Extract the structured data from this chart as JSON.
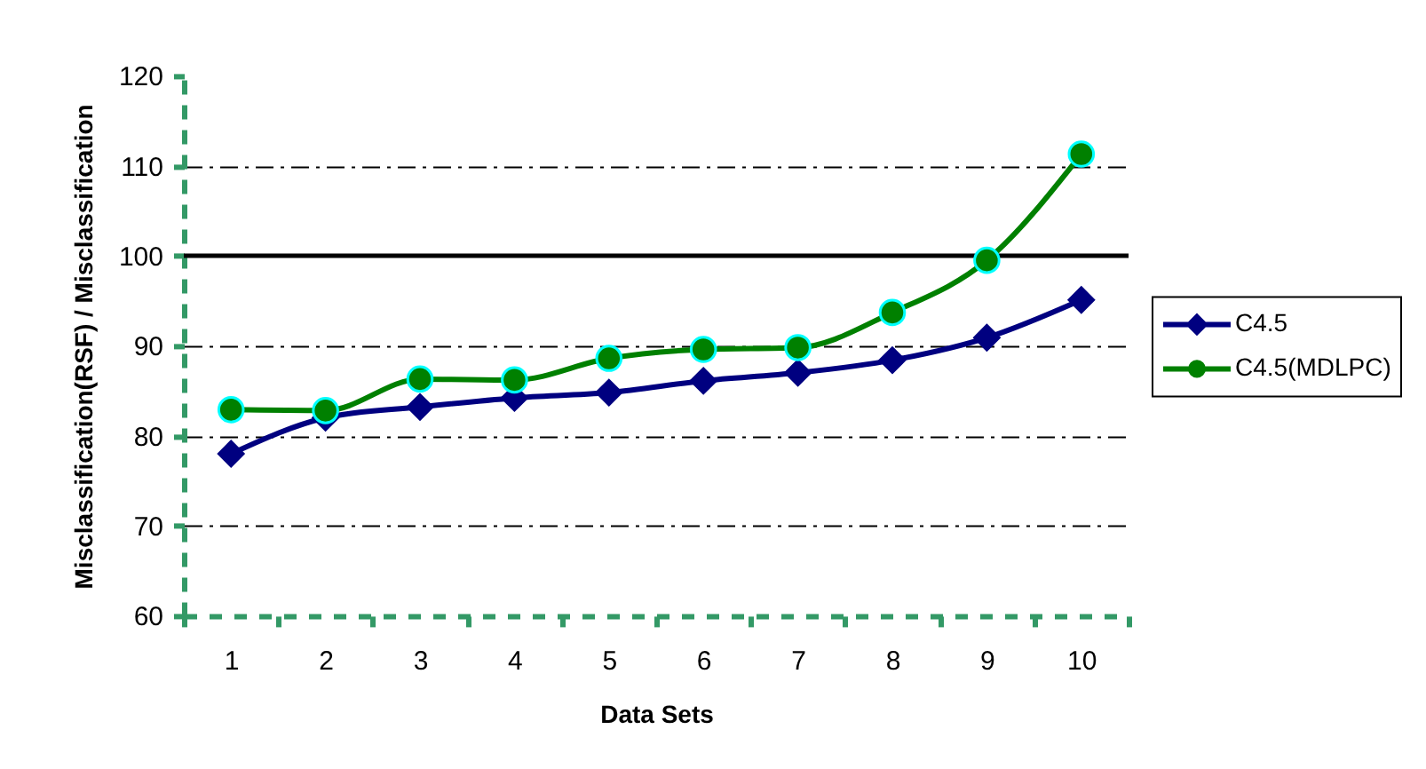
{
  "chart_data": {
    "type": "line",
    "xlabel": "Data Sets",
    "ylabel": "Misclassification(RSF) / Misclassification",
    "categories": [
      "1",
      "2",
      "3",
      "4",
      "5",
      "6",
      "7",
      "8",
      "9",
      "10"
    ],
    "series": [
      {
        "name": "C4.5",
        "color": "#000080",
        "marker": "diamond",
        "values": [
          78.0,
          82.0,
          83.2,
          84.2,
          84.8,
          86.1,
          87.0,
          88.4,
          90.9,
          95.1
        ]
      },
      {
        "name": "C4.5(MDLPC)",
        "color": "#008000",
        "marker": "circle",
        "values": [
          82.9,
          82.8,
          86.3,
          86.2,
          88.6,
          89.6,
          89.8,
          93.7,
          99.5,
          111.3
        ]
      }
    ],
    "ylim": [
      60,
      120
    ],
    "yticks": [
      60,
      70,
      80,
      90,
      100,
      110,
      120
    ],
    "grid": "y",
    "legend": "right",
    "line_style": "solid",
    "ref_lines": [
      {
        "axis": "y",
        "value": 100,
        "color": "#000000"
      }
    ]
  }
}
